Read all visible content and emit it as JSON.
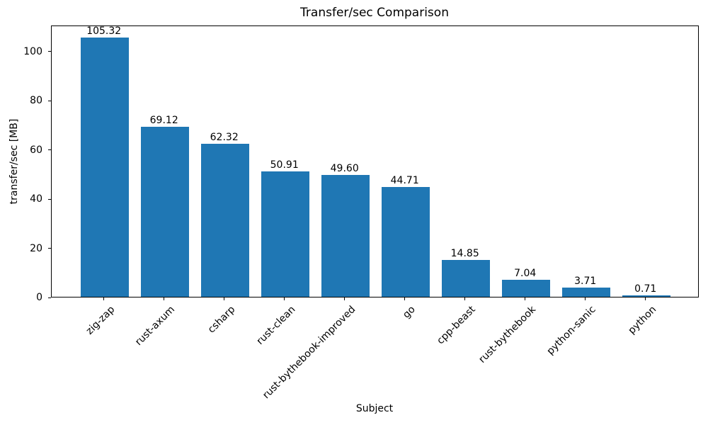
{
  "chart_data": {
    "type": "bar",
    "title": "Transfer/sec Comparison",
    "xlabel": "Subject",
    "ylabel": "transfer/sec [MB]",
    "categories": [
      "zig-zap",
      "rust-axum",
      "csharp",
      "rust-clean",
      "rust-bythebook-improved",
      "go",
      "cpp-beast",
      "rust-bythebook",
      "python-sanic",
      "python"
    ],
    "values": [
      105.32,
      69.12,
      62.32,
      50.91,
      49.6,
      44.71,
      14.85,
      7.04,
      3.71,
      0.71
    ],
    "value_labels": [
      "105.32",
      "69.12",
      "62.32",
      "50.91",
      "49.60",
      "44.71",
      "14.85",
      "7.04",
      "3.71",
      "0.71"
    ],
    "yticks": [
      0,
      20,
      40,
      60,
      80,
      100
    ],
    "ylim": [
      0,
      110.6
    ],
    "bar_color": "#1f77b4",
    "axis_color": "#000000",
    "grid": false,
    "legend_position": "none"
  }
}
